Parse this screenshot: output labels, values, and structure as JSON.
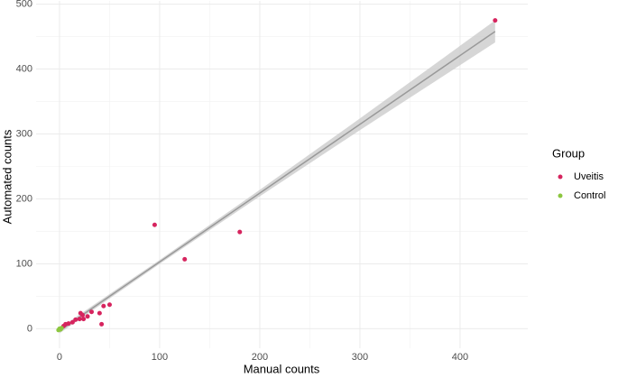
{
  "chart_data": {
    "type": "scatter",
    "x_label": "Manual counts",
    "y_label": "Automated counts",
    "legend_title": "Group",
    "legend_position": "right",
    "grid": true,
    "xlim": [
      -23.4,
      467.6
    ],
    "xticks": [
      0,
      100,
      200,
      300,
      400
    ],
    "ylim": [
      -30,
      505
    ],
    "yticks": [
      0,
      100,
      200,
      300,
      400,
      500
    ],
    "series": [
      {
        "name": "Uveitis",
        "color": "#d6245e",
        "x": [
          435,
          95,
          125,
          180,
          50,
          44,
          40,
          42,
          21,
          23,
          28,
          16,
          13,
          9,
          6,
          4,
          20,
          32,
          24
        ],
        "y": [
          475,
          160,
          107,
          149,
          37,
          35,
          24,
          7,
          24,
          21,
          19,
          14,
          10,
          8,
          7,
          4,
          15,
          26,
          15
        ]
      },
      {
        "name": "Control",
        "color": "#8cc63f",
        "x": [
          0,
          2,
          1,
          -1
        ],
        "y": [
          0,
          1,
          -1,
          -2
        ]
      }
    ],
    "fit": {
      "color": "#999999",
      "x": [
        0,
        435
      ],
      "y": [
        -3,
        458
      ]
    },
    "band": {
      "color": "#cccccc",
      "x": [
        0,
        100,
        200,
        300,
        435
      ],
      "lower": [
        -7,
        100,
        204,
        306,
        441
      ],
      "upper": [
        1,
        106,
        214,
        324,
        475
      ]
    }
  }
}
